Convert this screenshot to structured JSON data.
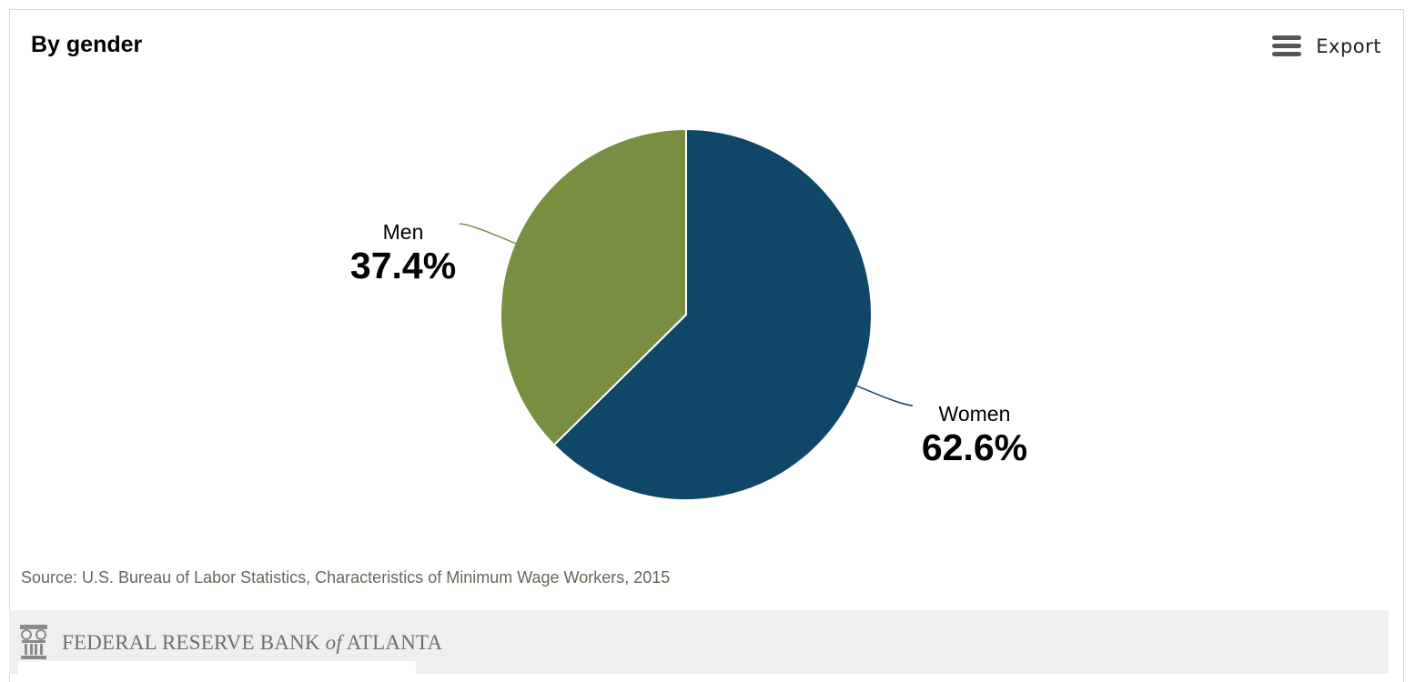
{
  "header": {
    "title": "By gender"
  },
  "toolbar": {
    "export_label": "Export",
    "menu_icon": "hamburger-menu-icon"
  },
  "chart_data": {
    "type": "pie",
    "title": "By gender",
    "slices": [
      {
        "label": "Women",
        "value": 62.6,
        "display": "62.6%",
        "color": "#104668"
      },
      {
        "label": "Men",
        "value": 37.4,
        "display": "37.4%",
        "color": "#788f42"
      }
    ],
    "start_angle_deg": 0,
    "direction": "clockwise",
    "legend": "none",
    "data_labels": "outside-with-connectors"
  },
  "source": {
    "text": "Source: U.S. Bureau of Labor Statistics, Characteristics of Minimum Wage Workers, 2015"
  },
  "footer": {
    "brand_main": "FEDERAL RESERVE BANK ",
    "brand_of": "of",
    "brand_end": " ATLANTA",
    "logo_icon": "fed-seal-icon"
  }
}
